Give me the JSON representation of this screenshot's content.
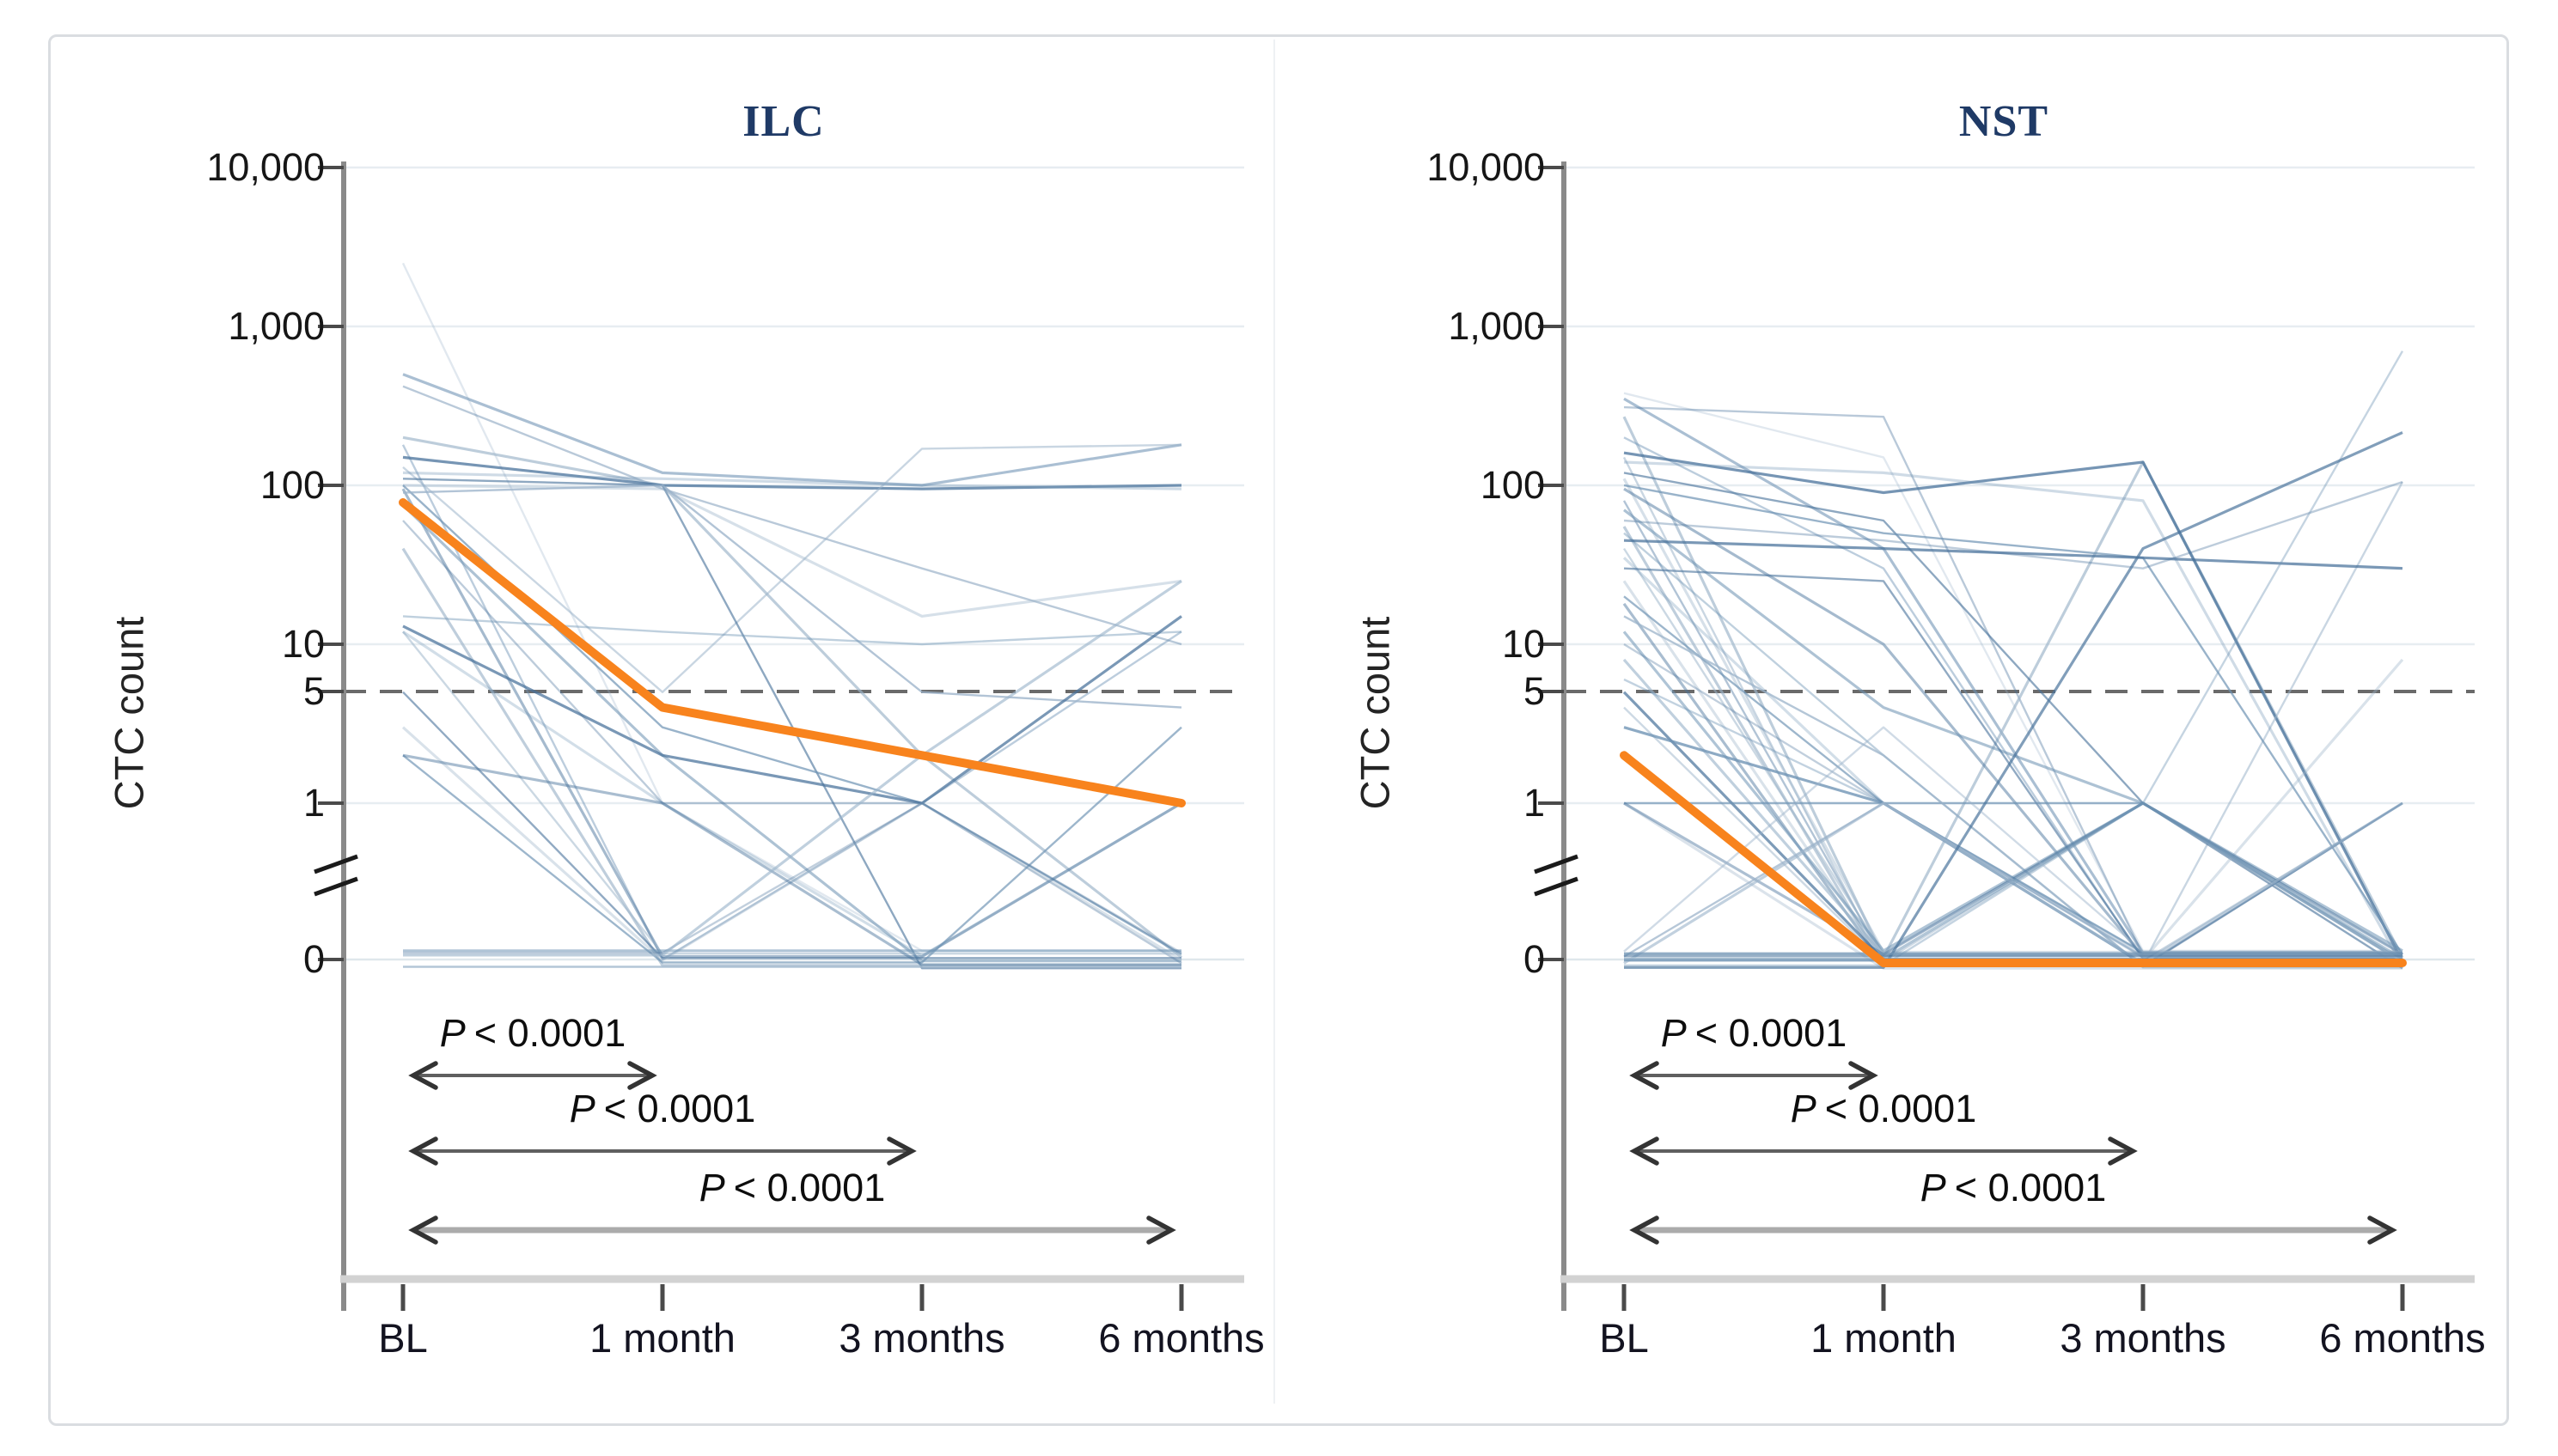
{
  "figure": {
    "description": "Two-panel spaghetti plot of CTC count trajectories over time with median lines and P-value annotations",
    "threshold_value": "5"
  },
  "colors": {
    "median_line": "#F8831D",
    "patient_line_shades": [
      "#9CB4CA",
      "#6E93B4",
      "#48729B"
    ],
    "threshold_dash": "#6A6A6A",
    "title_text": "#1F3A66",
    "grid_line": "#E7EDF1",
    "zero_grid_line": "#DFE7EC",
    "axis_line": "#8A8A8A",
    "tick_mark": "#4A4A4A",
    "x_axis_line": "#D2D2D2",
    "arrow_shaft": "#5F5F5F",
    "arrow_shaft_light": "#ABABAB",
    "arrow_head": "#333333",
    "figure_border": "#DADDE1"
  },
  "panels": [
    {
      "title": "ILC",
      "ylabel": "CTC count",
      "y_tick_labels": [
        "10,000",
        "1,000",
        "100",
        "10",
        "5",
        "1",
        "0"
      ],
      "x_tick_labels": [
        "BL",
        "1 month",
        "3 months",
        "6 months"
      ],
      "p_values": [
        {
          "symbol": "P",
          "text": "< 0.0001",
          "from": "BL",
          "to": "1 month"
        },
        {
          "symbol": "P",
          "text": "< 0.0001",
          "from": "BL",
          "to": "3 months"
        },
        {
          "symbol": "P",
          "text": "< 0.0001",
          "from": "BL",
          "to": "6 months"
        }
      ]
    },
    {
      "title": "NST",
      "ylabel": "CTC count",
      "y_tick_labels": [
        "10,000",
        "1,000",
        "100",
        "10",
        "5",
        "1",
        "0"
      ],
      "x_tick_labels": [
        "BL",
        "1 month",
        "3 months",
        "6 months"
      ],
      "p_values": [
        {
          "symbol": "P",
          "text": "< 0.0001",
          "from": "BL",
          "to": "1 month"
        },
        {
          "symbol": "P",
          "text": "< 0.0001",
          "from": "BL",
          "to": "3 months"
        },
        {
          "symbol": "P",
          "text": "< 0.0001",
          "from": "BL",
          "to": "6 months"
        }
      ]
    }
  ],
  "chart_data": [
    {
      "type": "line",
      "title": "ILC",
      "x_categories": [
        "BL",
        "1 month",
        "3 months",
        "6 months"
      ],
      "ylabel": "CTC count",
      "yscale": "log10 from 1 to 10000 with axis break down to 0",
      "ylim": [
        0,
        10000
      ],
      "y_ticks": [
        10000,
        1000,
        100,
        10,
        5,
        1,
        0
      ],
      "threshold_line": 5,
      "grid": true,
      "median_series": {
        "name": "median",
        "values": [
          78,
          4,
          2,
          1
        ]
      },
      "patient_series": [
        [
          2500,
          1,
          0,
          0
        ],
        [
          500,
          120,
          100,
          180
        ],
        [
          420,
          95,
          30,
          10
        ],
        [
          200,
          100,
          2,
          0
        ],
        [
          180,
          0,
          1,
          12
        ],
        [
          150,
          100,
          95,
          100
        ],
        [
          130,
          5,
          170,
          180
        ],
        [
          120,
          110,
          100,
          95
        ],
        [
          110,
          100,
          0,
          0
        ],
        [
          100,
          95,
          15,
          25
        ],
        [
          100,
          3,
          1,
          0
        ],
        [
          95,
          0,
          0,
          1
        ],
        [
          90,
          100,
          5,
          4
        ],
        [
          75,
          2,
          0,
          0
        ],
        [
          60,
          1,
          1,
          0
        ],
        [
          40,
          0,
          0,
          0
        ],
        [
          15,
          12,
          10,
          12
        ],
        [
          13,
          2,
          1,
          15
        ],
        [
          12,
          0,
          0,
          0
        ],
        [
          12,
          1,
          0,
          1
        ],
        [
          5,
          0,
          0,
          0
        ],
        [
          3,
          0,
          1,
          0
        ],
        [
          2,
          0,
          0,
          3
        ],
        [
          2,
          1,
          0,
          0
        ],
        [
          0,
          0,
          0,
          0
        ],
        [
          0,
          0,
          0,
          0
        ],
        [
          0,
          0,
          1,
          0
        ],
        [
          0,
          0,
          2,
          25
        ]
      ]
    },
    {
      "type": "line",
      "title": "NST",
      "x_categories": [
        "BL",
        "1 month",
        "3 months",
        "6 months"
      ],
      "ylabel": "CTC count",
      "yscale": "log10 from 1 to 10000 with axis break down to 0",
      "ylim": [
        0,
        10000
      ],
      "y_ticks": [
        10000,
        1000,
        100,
        10,
        5,
        1,
        0
      ],
      "threshold_line": 5,
      "grid": true,
      "median_series": {
        "name": "median",
        "values": [
          2,
          0,
          0,
          0
        ]
      },
      "patient_series": [
        [
          380,
          150,
          0,
          0
        ],
        [
          350,
          40,
          0,
          0
        ],
        [
          310,
          270,
          0,
          0
        ],
        [
          270,
          0,
          140,
          0
        ],
        [
          200,
          30,
          0,
          0
        ],
        [
          160,
          90,
          140,
          0
        ],
        [
          150,
          0,
          0,
          105
        ],
        [
          140,
          120,
          80,
          0
        ],
        [
          120,
          60,
          1,
          0
        ],
        [
          110,
          0,
          0,
          0
        ],
        [
          100,
          50,
          35,
          0
        ],
        [
          95,
          10,
          0,
          0
        ],
        [
          80,
          0,
          0,
          0
        ],
        [
          70,
          4,
          1,
          0
        ],
        [
          60,
          45,
          30,
          105
        ],
        [
          55,
          0,
          0,
          0
        ],
        [
          50,
          2,
          0,
          0
        ],
        [
          45,
          40,
          35,
          30
        ],
        [
          40,
          0,
          1,
          0
        ],
        [
          35,
          1,
          0,
          0
        ],
        [
          30,
          25,
          0,
          0
        ],
        [
          25,
          0,
          0,
          8
        ],
        [
          20,
          1,
          1,
          0
        ],
        [
          18,
          0,
          0,
          0
        ],
        [
          15,
          2,
          0,
          1
        ],
        [
          12,
          0,
          1,
          0
        ],
        [
          10,
          1,
          0,
          0
        ],
        [
          8,
          0,
          0,
          0
        ],
        [
          6,
          1,
          0,
          0
        ],
        [
          5,
          0,
          0,
          0
        ],
        [
          4,
          0,
          1,
          0
        ],
        [
          3,
          1,
          0,
          0
        ],
        [
          2,
          0,
          0,
          1
        ],
        [
          1,
          0,
          0,
          0
        ],
        [
          1,
          1,
          0,
          0
        ],
        [
          1,
          0,
          1,
          0
        ],
        [
          0,
          1,
          0,
          0
        ],
        [
          0,
          0,
          1,
          0
        ],
        [
          0,
          0,
          0,
          1
        ],
        [
          0,
          1,
          0,
          1
        ],
        [
          0,
          0,
          1,
          700
        ],
        [
          0,
          0,
          40,
          215
        ],
        [
          0,
          3,
          0,
          0
        ],
        [
          0,
          0,
          0,
          0
        ],
        [
          0,
          0,
          0,
          0
        ],
        [
          0,
          0,
          0,
          0
        ],
        [
          0,
          0,
          0,
          0
        ]
      ]
    }
  ]
}
